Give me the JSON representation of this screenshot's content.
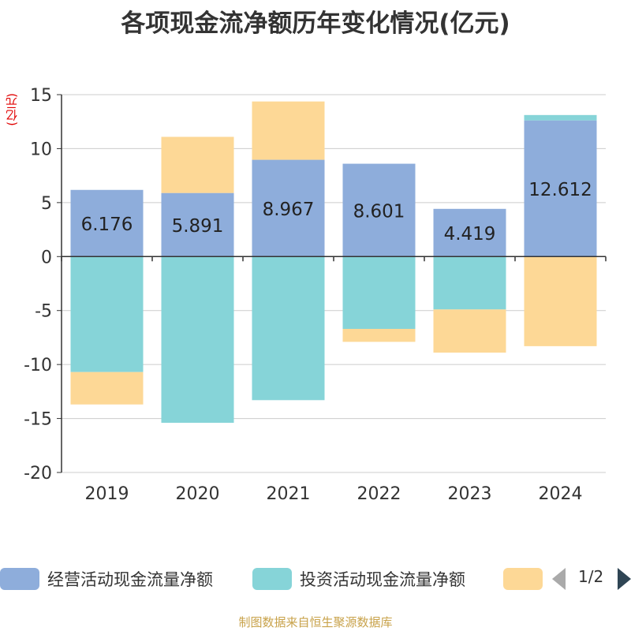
{
  "chart_data": {
    "type": "bar",
    "stacked": true,
    "title": "各项现金流净额历年变化情况(亿元)",
    "ylabel": "(亿元)",
    "xlabel": "",
    "categories": [
      "2019",
      "2020",
      "2021",
      "2022",
      "2023",
      "2024"
    ],
    "ylim": [
      -20,
      15
    ],
    "yticks": [
      "15",
      "10",
      "5",
      "0",
      "-5",
      "-10",
      "-15",
      "-20"
    ],
    "grid": true,
    "legend_position": "bottom",
    "series": [
      {
        "name": "经营活动现金流量净额",
        "color": "#8eaddb",
        "values": [
          6.176,
          5.891,
          8.967,
          8.601,
          4.419,
          12.612
        ],
        "show_labels": true
      },
      {
        "name": "投资活动现金流量净额",
        "color": "#86d4d8",
        "values": [
          -10.7,
          -15.4,
          -13.3,
          -6.7,
          -4.9,
          0.5
        ],
        "show_labels": false
      },
      {
        "name": "",
        "color": "#fdd896",
        "values": [
          -3.0,
          5.2,
          5.4,
          -1.2,
          -4.0,
          -8.3
        ],
        "show_labels": false
      }
    ]
  },
  "legend": {
    "page": "1/2"
  },
  "source": "制图数据来自恒生聚源数据库"
}
